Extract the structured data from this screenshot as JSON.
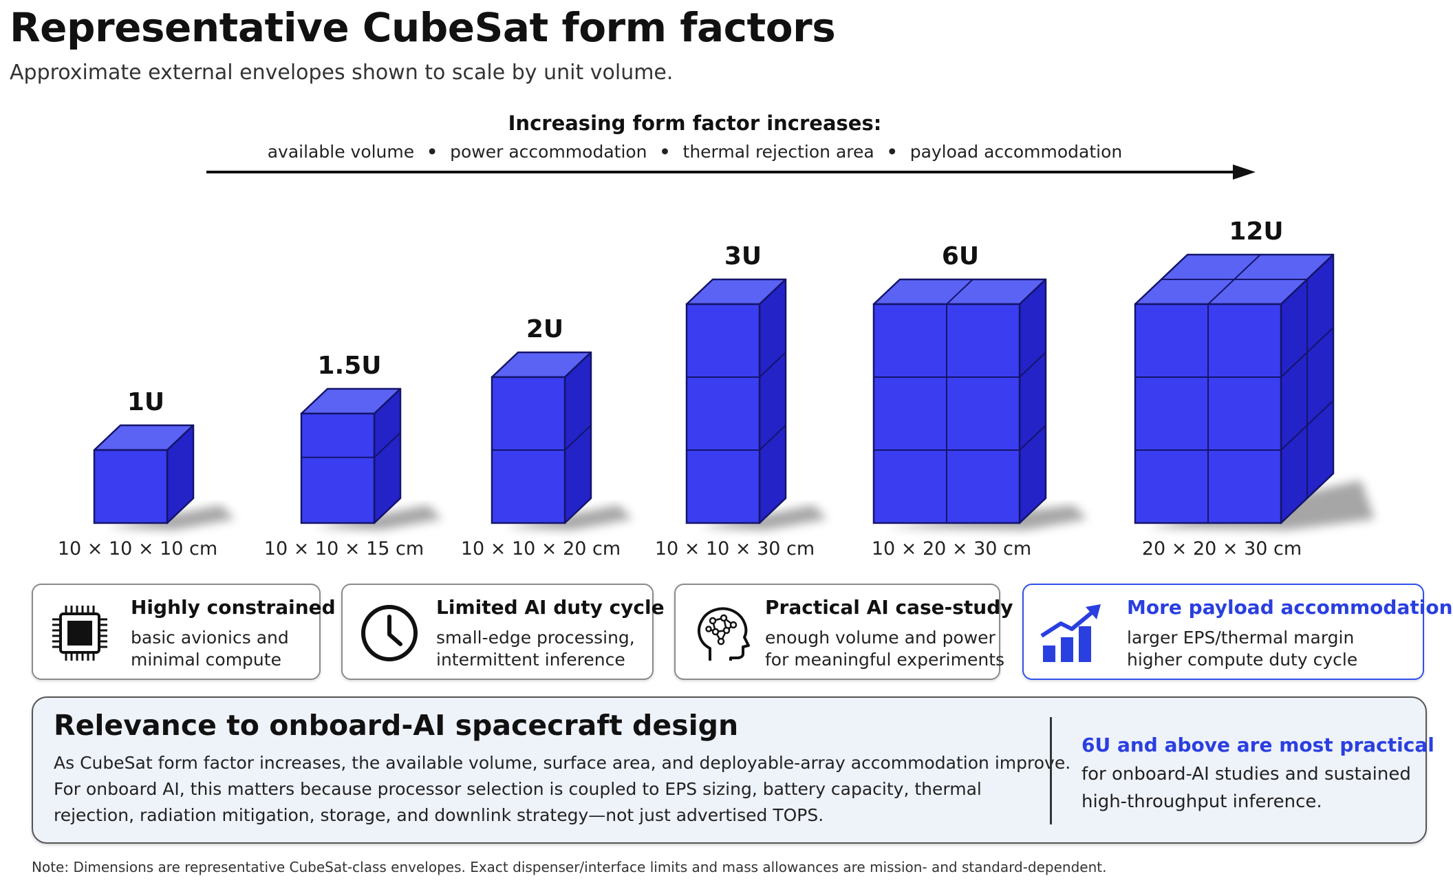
{
  "header": {
    "title": "Representative CubeSat form factors",
    "subtitle": "Approximate external envelopes shown to scale by unit volume."
  },
  "trend": {
    "heading": "Increasing form factor increases:",
    "items": [
      "available volume",
      "power accommodation",
      "thermal rejection area",
      "payload accommodation"
    ]
  },
  "colors": {
    "cube_front": "#3a3ef0",
    "cube_top": "#5a63f4",
    "cube_side": "#2323c8",
    "cube_edge": "#14146a",
    "accent_blue": "#2a3fe0"
  },
  "form_factors": [
    {
      "label": "1U",
      "dims": "10 × 10 × 10 cm",
      "columns": 1,
      "rows": 1,
      "depth": 1
    },
    {
      "label": "1.5U",
      "dims": "10 × 10 × 15 cm",
      "columns": 1,
      "rows": 1.5,
      "depth": 1
    },
    {
      "label": "2U",
      "dims": "10 × 10 × 20 cm",
      "columns": 1,
      "rows": 2,
      "depth": 1
    },
    {
      "label": "3U",
      "dims": "10 × 10 × 30 cm",
      "columns": 1,
      "rows": 3,
      "depth": 1
    },
    {
      "label": "6U",
      "dims": "10 × 20 × 30 cm",
      "columns": 2,
      "rows": 3,
      "depth": 1
    },
    {
      "label": "12U",
      "dims": "20 × 20 × 30 cm",
      "columns": 2,
      "rows": 3,
      "depth": 2
    }
  ],
  "cards": [
    {
      "icon": "chip-icon",
      "title": "Highly constrained",
      "lines": [
        "basic avionics and",
        "minimal compute"
      ]
    },
    {
      "icon": "clock-icon",
      "title": "Limited AI duty cycle",
      "lines": [
        "small-edge processing,",
        "intermittent inference"
      ]
    },
    {
      "icon": "ai-brain-icon",
      "title": "Practical AI case-study",
      "lines": [
        "enough volume and power",
        "for meaningful experiments"
      ]
    },
    {
      "icon": "growth-chart-icon",
      "title": "More payload accommodation",
      "lines": [
        "larger EPS/thermal margin",
        "higher compute duty cycle"
      ]
    }
  ],
  "relevance": {
    "title": "Relevance to onboard-AI spacecraft design",
    "lines": [
      "As CubeSat form factor increases, the available volume, surface area, and deployable-array accommodation improve.",
      "For onboard AI, this matters because processor selection is coupled to EPS sizing, battery capacity, thermal",
      "rejection, radiation mitigation, storage, and downlink strategy—not just advertised TOPS."
    ],
    "side_title": "6U and above are most practical",
    "side_lines": [
      "for onboard-AI studies and sustained",
      "high-throughput inference."
    ]
  },
  "note": "Note: Dimensions are representative CubeSat-class envelopes. Exact dispenser/interface limits and mass allowances are mission- and standard-dependent."
}
